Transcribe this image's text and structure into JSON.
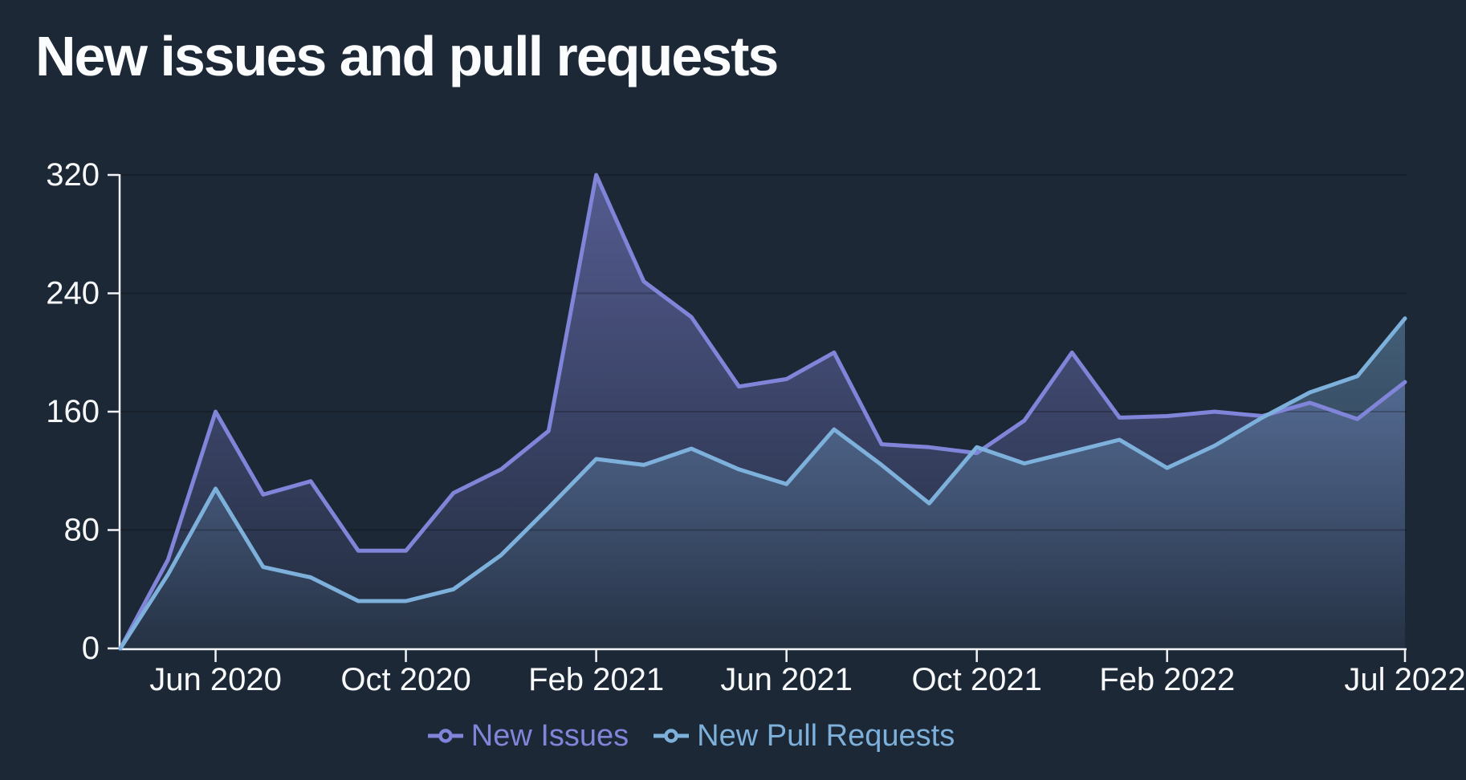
{
  "title": "New issues and pull requests",
  "colors": {
    "background": "#1d2836",
    "axis": "#f2f4f8",
    "label_text": "#f7f9fb",
    "gridline": "rgba(0,0,0,0.22)",
    "issues": "#8185da",
    "pull_requests": "#7db1dc"
  },
  "legend": [
    {
      "label": "New Issues",
      "color": "#8185da"
    },
    {
      "label": "New Pull Requests",
      "color": "#7db1dc"
    }
  ],
  "chart_data": {
    "type": "area",
    "title": "New issues and pull requests",
    "xlabel": "",
    "ylabel": "",
    "ylim": [
      0,
      320
    ],
    "grid": true,
    "legend_position": "bottom",
    "x": [
      "Apr 2020",
      "May 2020",
      "Jun 2020",
      "Jul 2020",
      "Aug 2020",
      "Sep 2020",
      "Oct 2020",
      "Nov 2020",
      "Dec 2020",
      "Jan 2021",
      "Feb 2021",
      "Mar 2021",
      "Apr 2021",
      "May 2021",
      "Jun 2021",
      "Jul 2021",
      "Aug 2021",
      "Sep 2021",
      "Oct 2021",
      "Nov 2021",
      "Dec 2021",
      "Jan 2022",
      "Feb 2022",
      "Mar 2022",
      "Apr 2022",
      "May 2022",
      "Jun 2022",
      "Jul 2022"
    ],
    "series": [
      {
        "name": "New Issues",
        "color": "#8185da",
        "values": [
          0,
          60,
          160,
          104,
          113,
          66,
          66,
          105,
          121,
          147,
          320,
          248,
          224,
          177,
          182,
          200,
          138,
          136,
          132,
          154,
          200,
          156,
          157,
          160,
          157,
          166,
          155,
          180
        ]
      },
      {
        "name": "New Pull Requests",
        "color": "#7db1dc",
        "values": [
          0,
          50,
          108,
          55,
          48,
          32,
          32,
          40,
          63,
          95,
          128,
          124,
          135,
          121,
          111,
          148,
          124,
          98,
          136,
          125,
          133,
          141,
          122,
          137,
          156,
          173,
          184,
          223
        ]
      }
    ],
    "y_ticks": [
      0,
      80,
      160,
      240,
      320
    ],
    "x_tick_indices": [
      2,
      6,
      10,
      14,
      18,
      22,
      27
    ],
    "x_tick_labels": [
      "Jun 2020",
      "Oct 2020",
      "Feb 2021",
      "Jun 2021",
      "Oct 2021",
      "Feb 2022",
      "Jul 2022"
    ]
  }
}
